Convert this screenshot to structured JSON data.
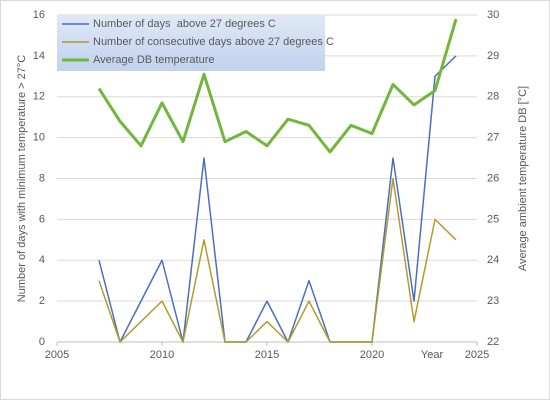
{
  "chart_data": {
    "type": "line",
    "x": [
      2007,
      2008,
      2009,
      2010,
      2011,
      2012,
      2013,
      2014,
      2015,
      2016,
      2017,
      2018,
      2019,
      2020,
      2021,
      2022,
      2023,
      2024
    ],
    "series": [
      {
        "name": "Number of days  above 27 degrees C",
        "color": "#4a6fc0",
        "axis": "y",
        "values": [
          4,
          0,
          2,
          4,
          0,
          9,
          0,
          0,
          2,
          0,
          3,
          0,
          0,
          0,
          9,
          2,
          13,
          14
        ]
      },
      {
        "name": "Number of consecutive days above 27 degrees C",
        "color": "#b39b2c",
        "axis": "y",
        "values": [
          3,
          0,
          1,
          2,
          0,
          5,
          0,
          0,
          1,
          0,
          2,
          0,
          0,
          0,
          8,
          1,
          6,
          5
        ]
      },
      {
        "name": "Average DB temperature",
        "color": "#72b73c",
        "axis": "y2",
        "values": [
          28.2,
          27.4,
          26.8,
          27.85,
          26.9,
          28.55,
          26.9,
          27.15,
          26.8,
          27.45,
          27.3,
          26.65,
          27.3,
          27.1,
          28.3,
          27.8,
          28.15,
          29.9
        ]
      }
    ],
    "xlim": [
      2005,
      2025
    ],
    "xticks": [
      2005,
      2010,
      2015,
      2020,
      2025
    ],
    "ylim": [
      0,
      16
    ],
    "yticks": [
      0,
      2,
      4,
      6,
      8,
      10,
      12,
      14,
      16
    ],
    "y2lim": [
      22,
      30
    ],
    "y2ticks": [
      22,
      23,
      24,
      25,
      26,
      27,
      28,
      29,
      30
    ],
    "x_label": "Year",
    "y_label": "Number of days with minimum temperature > 27°C",
    "y2_label": "Average ambient temperature DB [°C]",
    "grid": true,
    "legend": "upper left"
  }
}
